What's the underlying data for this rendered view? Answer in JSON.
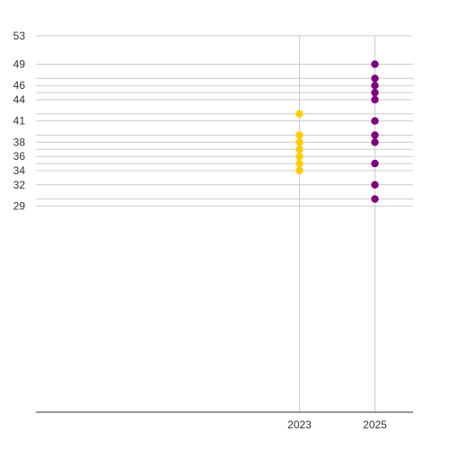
{
  "chart_data": {
    "type": "scatter",
    "title": "",
    "xlabel": "",
    "ylabel": "",
    "x_ticks": [
      "2023",
      "2025"
    ],
    "y_ticks": [
      53,
      49,
      46,
      44,
      41,
      38,
      36,
      34,
      32,
      29
    ],
    "grid": true,
    "legend": "none",
    "series": [
      {
        "x": "2023",
        "color": "#ffcc00",
        "values": [
          42,
          39,
          38,
          37,
          36,
          35,
          34
        ]
      },
      {
        "x": "2025",
        "color": "#800080",
        "values": [
          49,
          47,
          46,
          45,
          44,
          41,
          39,
          38,
          35,
          32,
          30
        ]
      }
    ]
  }
}
